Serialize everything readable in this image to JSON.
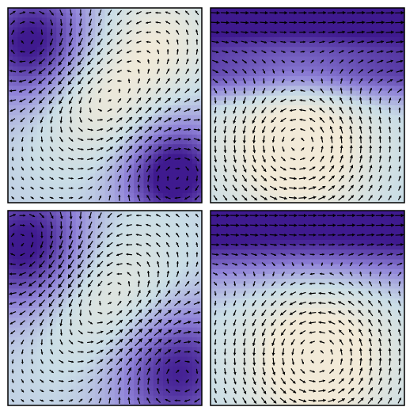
{
  "figure": {
    "title": "",
    "colors": {
      "low": "#f2ead8",
      "mid_light": "#c9dde6",
      "mid": "#8f82d8",
      "high": "#3f1a8f",
      "arrow": "#000000",
      "frame": "#000000"
    }
  },
  "chart_data": [
    {
      "type": "heatmap",
      "subtype": "quiver",
      "panel": "top-left",
      "title": "",
      "xlabel": "",
      "ylabel": "",
      "xlim": [
        0,
        1
      ],
      "ylim": [
        0,
        1
      ],
      "grid": false,
      "legend": "none",
      "colormap": "lavender-to-purple",
      "quiver_grid": [
        20,
        20
      ],
      "features": [
        {
          "x": 0.15,
          "y": 0.8,
          "kind": "high",
          "radius": 0.23,
          "strength": 1.0
        },
        {
          "x": 0.85,
          "y": 0.15,
          "kind": "high",
          "radius": 0.2,
          "strength": 1.0
        },
        {
          "x": 0.45,
          "y": 0.55,
          "kind": "low",
          "radius": 0.25,
          "strength": 0.8
        },
        {
          "x": 0.8,
          "y": 0.85,
          "kind": "low",
          "radius": 0.2,
          "strength": 0.5
        }
      ]
    },
    {
      "type": "heatmap",
      "subtype": "quiver",
      "panel": "top-right",
      "title": "",
      "xlabel": "",
      "ylabel": "",
      "xlim": [
        0,
        1
      ],
      "ylim": [
        0,
        1
      ],
      "grid": false,
      "legend": "none",
      "colormap": "lavender-to-purple",
      "quiver_grid": [
        20,
        20
      ],
      "features": [
        {
          "x": 0.5,
          "y": 0.95,
          "kind": "band",
          "radius": 0.14,
          "strength": 1.0
        },
        {
          "x": 0.45,
          "y": 0.65,
          "kind": "band",
          "radius": 0.1,
          "strength": 0.6
        },
        {
          "x": 0.45,
          "y": 0.3,
          "kind": "low",
          "radius": 0.28,
          "strength": 1.0
        }
      ]
    },
    {
      "type": "heatmap",
      "subtype": "quiver",
      "panel": "bottom-left",
      "title": "",
      "xlabel": "",
      "ylabel": "",
      "xlim": [
        0,
        1
      ],
      "ylim": [
        0,
        1
      ],
      "grid": false,
      "legend": "none",
      "colormap": "lavender-to-purple",
      "quiver_grid": [
        20,
        20
      ],
      "features": [
        {
          "x": 0.12,
          "y": 0.8,
          "kind": "high",
          "radius": 0.25,
          "strength": 1.0
        },
        {
          "x": 0.85,
          "y": 0.2,
          "kind": "high",
          "radius": 0.25,
          "strength": 0.9
        },
        {
          "x": 0.5,
          "y": 0.55,
          "kind": "low",
          "radius": 0.28,
          "strength": 0.8
        }
      ]
    },
    {
      "type": "heatmap",
      "subtype": "quiver",
      "panel": "bottom-right",
      "title": "",
      "xlabel": "",
      "ylabel": "",
      "xlim": [
        0,
        1
      ],
      "ylim": [
        0,
        1
      ],
      "grid": false,
      "legend": "none",
      "colormap": "lavender-to-purple",
      "quiver_grid": [
        20,
        20
      ],
      "features": [
        {
          "x": 0.5,
          "y": 0.95,
          "kind": "band",
          "radius": 0.2,
          "strength": 1.0
        },
        {
          "x": 0.55,
          "y": 0.25,
          "kind": "low",
          "radius": 0.28,
          "strength": 1.0
        }
      ]
    }
  ]
}
